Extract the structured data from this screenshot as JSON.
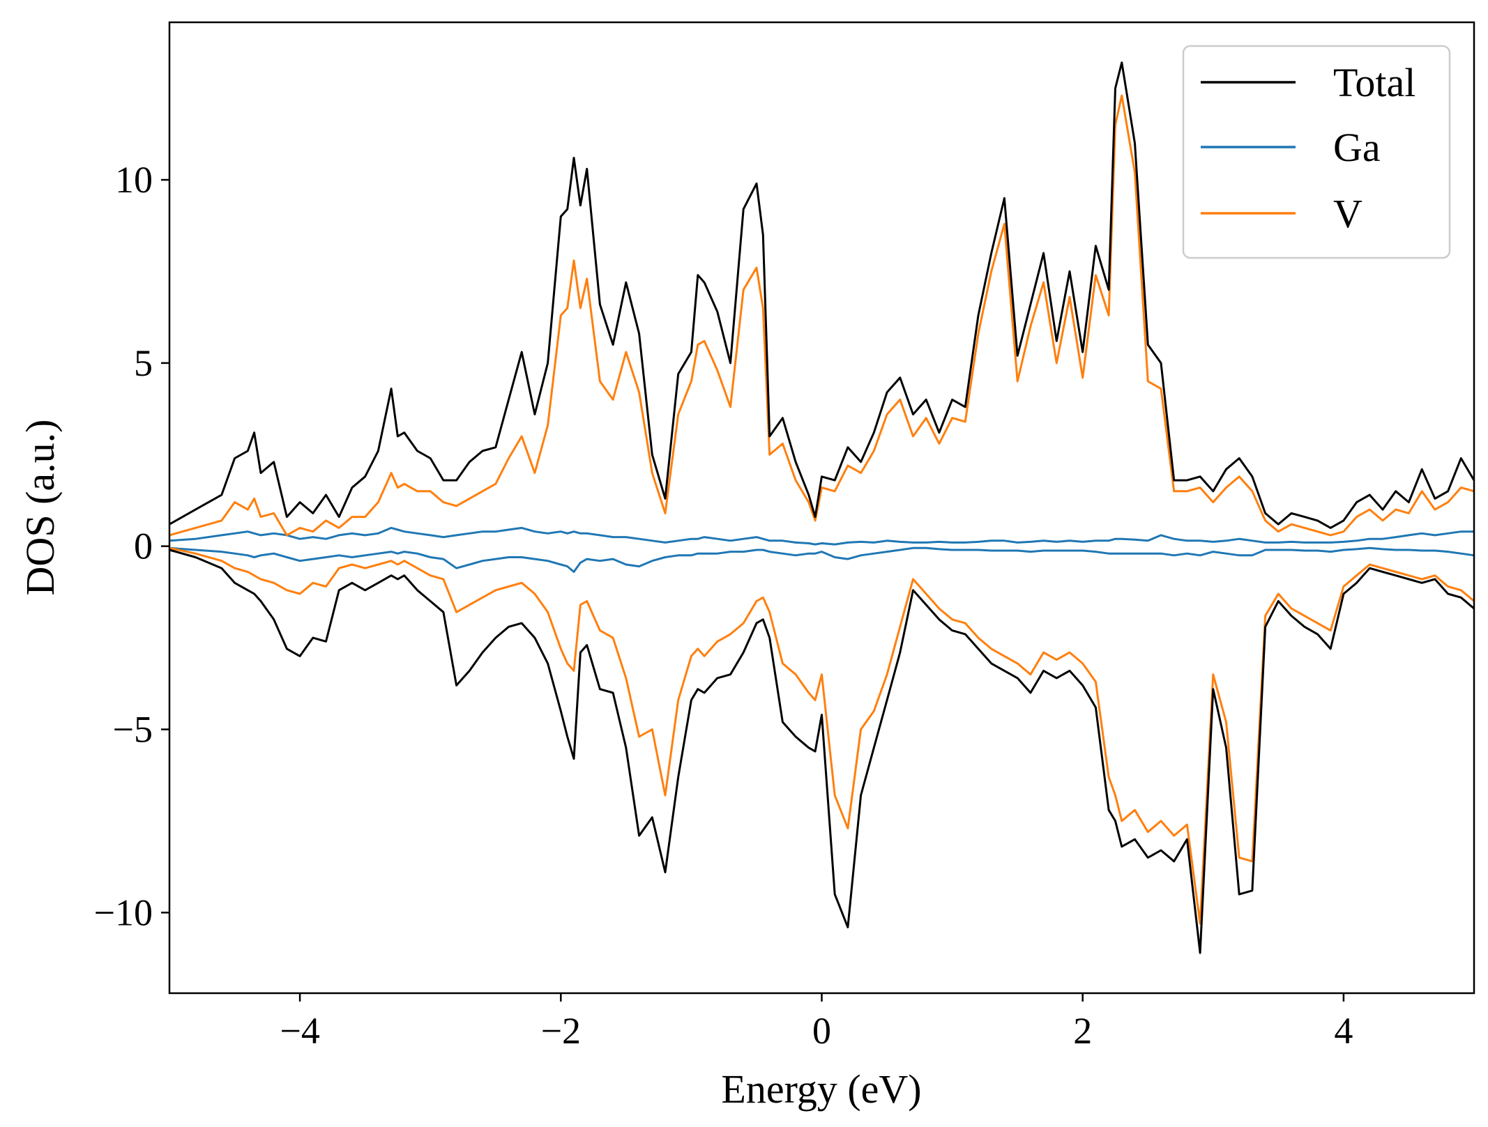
{
  "chart_data": {
    "type": "line",
    "title": "",
    "xlabel": "Energy (eV)",
    "ylabel": "DOS (a.u.)",
    "xlim": [
      -5,
      5
    ],
    "ylim": [
      -12.2,
      14.3
    ],
    "xticks": [
      -4,
      -2,
      0,
      2,
      4
    ],
    "xtick_labels": [
      "−4",
      "−2",
      "0",
      "2",
      "4"
    ],
    "yticks": [
      -10,
      -5,
      0,
      5,
      10
    ],
    "ytick_labels": [
      "−10",
      "−5",
      "0",
      "5",
      "10"
    ],
    "grid": false,
    "legend_position": "top-right",
    "legend": [
      "Total",
      "Ga",
      "V"
    ],
    "colors": {
      "Total": "#000000",
      "Ga": "#1f77b4",
      "V": "#ff7f0e"
    },
    "x": [
      -5.0,
      -4.8,
      -4.6,
      -4.5,
      -4.4,
      -4.35,
      -4.3,
      -4.2,
      -4.1,
      -4.0,
      -3.9,
      -3.8,
      -3.7,
      -3.6,
      -3.5,
      -3.4,
      -3.3,
      -3.25,
      -3.2,
      -3.1,
      -3.0,
      -2.9,
      -2.8,
      -2.7,
      -2.6,
      -2.5,
      -2.4,
      -2.3,
      -2.2,
      -2.1,
      -2.0,
      -1.95,
      -1.9,
      -1.85,
      -1.8,
      -1.7,
      -1.6,
      -1.5,
      -1.4,
      -1.3,
      -1.2,
      -1.1,
      -1.0,
      -0.95,
      -0.9,
      -0.8,
      -0.7,
      -0.6,
      -0.5,
      -0.45,
      -0.4,
      -0.3,
      -0.2,
      -0.1,
      -0.05,
      0.0,
      0.1,
      0.2,
      0.3,
      0.4,
      0.5,
      0.6,
      0.7,
      0.8,
      0.9,
      1.0,
      1.1,
      1.2,
      1.3,
      1.4,
      1.5,
      1.6,
      1.7,
      1.8,
      1.9,
      2.0,
      2.1,
      2.2,
      2.25,
      2.3,
      2.4,
      2.5,
      2.6,
      2.7,
      2.8,
      2.9,
      3.0,
      3.1,
      3.2,
      3.3,
      3.4,
      3.5,
      3.6,
      3.7,
      3.8,
      3.9,
      4.0,
      4.1,
      4.2,
      4.3,
      4.4,
      4.5,
      4.6,
      4.7,
      4.8,
      4.9,
      5.0
    ],
    "series": [
      {
        "name": "Total",
        "spin": "up",
        "values": [
          0.6,
          1.0,
          1.4,
          2.4,
          2.6,
          3.1,
          2.0,
          2.3,
          0.8,
          1.2,
          0.9,
          1.4,
          0.8,
          1.6,
          1.9,
          2.6,
          4.3,
          3.0,
          3.1,
          2.6,
          2.4,
          1.8,
          1.8,
          2.3,
          2.6,
          2.7,
          4.0,
          5.3,
          3.6,
          5.0,
          9.0,
          9.2,
          10.6,
          9.3,
          10.3,
          6.6,
          5.5,
          7.2,
          5.8,
          2.5,
          1.3,
          4.7,
          5.3,
          7.4,
          7.2,
          6.4,
          5.0,
          9.2,
          9.9,
          8.5,
          3.0,
          3.5,
          2.3,
          1.4,
          0.8,
          1.9,
          1.8,
          2.7,
          2.3,
          3.1,
          4.2,
          4.6,
          3.6,
          4.0,
          3.1,
          4.0,
          3.8,
          6.3,
          8.0,
          9.5,
          5.2,
          6.6,
          8.0,
          5.6,
          7.5,
          5.3,
          8.2,
          7.0,
          12.5,
          13.2,
          11.0,
          5.5,
          5.0,
          1.8,
          1.8,
          1.9,
          1.5,
          2.1,
          2.4,
          1.9,
          0.9,
          0.6,
          0.9,
          0.8,
          0.7,
          0.5,
          0.7,
          1.2,
          1.4,
          1.0,
          1.5,
          1.2,
          2.1,
          1.3,
          1.5,
          2.4,
          1.8
        ]
      },
      {
        "name": "Ga",
        "spin": "up",
        "values": [
          0.15,
          0.2,
          0.3,
          0.35,
          0.4,
          0.35,
          0.3,
          0.35,
          0.3,
          0.2,
          0.25,
          0.2,
          0.3,
          0.35,
          0.3,
          0.35,
          0.5,
          0.45,
          0.4,
          0.35,
          0.3,
          0.25,
          0.3,
          0.35,
          0.4,
          0.4,
          0.45,
          0.5,
          0.4,
          0.35,
          0.4,
          0.35,
          0.4,
          0.35,
          0.35,
          0.3,
          0.25,
          0.25,
          0.2,
          0.15,
          0.1,
          0.15,
          0.2,
          0.2,
          0.25,
          0.2,
          0.15,
          0.2,
          0.25,
          0.2,
          0.15,
          0.15,
          0.1,
          0.08,
          0.05,
          0.08,
          0.05,
          0.1,
          0.12,
          0.1,
          0.15,
          0.12,
          0.1,
          0.1,
          0.12,
          0.1,
          0.1,
          0.12,
          0.15,
          0.15,
          0.1,
          0.12,
          0.15,
          0.12,
          0.15,
          0.12,
          0.15,
          0.15,
          0.2,
          0.2,
          0.18,
          0.15,
          0.3,
          0.2,
          0.15,
          0.15,
          0.12,
          0.15,
          0.2,
          0.15,
          0.1,
          0.1,
          0.12,
          0.1,
          0.1,
          0.1,
          0.12,
          0.15,
          0.2,
          0.2,
          0.25,
          0.3,
          0.35,
          0.3,
          0.35,
          0.4,
          0.4
        ]
      },
      {
        "name": "V",
        "spin": "up",
        "values": [
          0.3,
          0.5,
          0.7,
          1.2,
          1.0,
          1.3,
          0.8,
          0.9,
          0.3,
          0.5,
          0.4,
          0.7,
          0.5,
          0.8,
          0.8,
          1.2,
          2.0,
          1.6,
          1.7,
          1.5,
          1.5,
          1.2,
          1.1,
          1.3,
          1.5,
          1.7,
          2.4,
          3.0,
          2.0,
          3.3,
          6.3,
          6.5,
          7.8,
          6.5,
          7.3,
          4.5,
          4.0,
          5.3,
          4.2,
          2.0,
          0.9,
          3.6,
          4.5,
          5.5,
          5.6,
          4.8,
          3.8,
          7.0,
          7.6,
          6.5,
          2.5,
          2.8,
          1.8,
          1.2,
          0.7,
          1.6,
          1.5,
          2.2,
          2.0,
          2.6,
          3.6,
          4.0,
          3.0,
          3.5,
          2.8,
          3.5,
          3.4,
          5.8,
          7.5,
          8.8,
          4.5,
          6.0,
          7.2,
          5.0,
          6.8,
          4.6,
          7.4,
          6.3,
          11.5,
          12.3,
          10.2,
          4.5,
          4.3,
          1.5,
          1.5,
          1.6,
          1.2,
          1.6,
          1.9,
          1.5,
          0.7,
          0.4,
          0.6,
          0.5,
          0.4,
          0.3,
          0.4,
          0.8,
          1.0,
          0.7,
          1.0,
          0.9,
          1.5,
          1.0,
          1.2,
          1.6,
          1.5
        ]
      },
      {
        "name": "Total",
        "spin": "down",
        "values": [
          -0.1,
          -0.3,
          -0.6,
          -1.0,
          -1.2,
          -1.3,
          -1.5,
          -2.0,
          -2.8,
          -3.0,
          -2.5,
          -2.6,
          -1.2,
          -1.0,
          -1.2,
          -1.0,
          -0.8,
          -0.9,
          -0.8,
          -1.2,
          -1.5,
          -1.8,
          -3.8,
          -3.4,
          -2.9,
          -2.5,
          -2.2,
          -2.1,
          -2.5,
          -3.2,
          -4.5,
          -5.2,
          -5.8,
          -2.9,
          -2.7,
          -3.9,
          -4.0,
          -5.5,
          -7.9,
          -7.4,
          -8.9,
          -6.3,
          -4.2,
          -3.9,
          -4.0,
          -3.6,
          -3.5,
          -2.9,
          -2.1,
          -2.0,
          -2.5,
          -4.8,
          -5.2,
          -5.5,
          -5.6,
          -4.6,
          -9.5,
          -10.4,
          -6.8,
          -5.5,
          -4.2,
          -2.9,
          -1.2,
          -1.6,
          -2.0,
          -2.3,
          -2.4,
          -2.8,
          -3.2,
          -3.4,
          -3.6,
          -4.0,
          -3.4,
          -3.6,
          -3.4,
          -3.8,
          -4.4,
          -7.2,
          -7.5,
          -8.2,
          -8.0,
          -8.5,
          -8.3,
          -8.6,
          -8.0,
          -11.1,
          -3.9,
          -5.5,
          -9.5,
          -9.4,
          -2.2,
          -1.5,
          -1.9,
          -2.2,
          -2.4,
          -2.8,
          -1.3,
          -1.0,
          -0.6,
          -0.7,
          -0.8,
          -0.9,
          -1.0,
          -0.9,
          -1.3,
          -1.4,
          -1.7
        ]
      },
      {
        "name": "Ga",
        "spin": "down",
        "values": [
          -0.05,
          -0.1,
          -0.15,
          -0.2,
          -0.25,
          -0.3,
          -0.25,
          -0.2,
          -0.3,
          -0.4,
          -0.35,
          -0.3,
          -0.25,
          -0.3,
          -0.25,
          -0.2,
          -0.15,
          -0.2,
          -0.15,
          -0.2,
          -0.3,
          -0.35,
          -0.6,
          -0.5,
          -0.4,
          -0.35,
          -0.3,
          -0.3,
          -0.35,
          -0.4,
          -0.5,
          -0.55,
          -0.7,
          -0.45,
          -0.35,
          -0.4,
          -0.35,
          -0.5,
          -0.55,
          -0.4,
          -0.3,
          -0.25,
          -0.25,
          -0.2,
          -0.2,
          -0.2,
          -0.15,
          -0.15,
          -0.1,
          -0.1,
          -0.15,
          -0.2,
          -0.25,
          -0.2,
          -0.2,
          -0.15,
          -0.3,
          -0.35,
          -0.25,
          -0.2,
          -0.15,
          -0.1,
          -0.05,
          -0.05,
          -0.08,
          -0.1,
          -0.1,
          -0.1,
          -0.12,
          -0.12,
          -0.12,
          -0.15,
          -0.12,
          -0.12,
          -0.12,
          -0.12,
          -0.15,
          -0.2,
          -0.2,
          -0.2,
          -0.2,
          -0.2,
          -0.2,
          -0.25,
          -0.2,
          -0.25,
          -0.15,
          -0.2,
          -0.25,
          -0.25,
          -0.1,
          -0.1,
          -0.1,
          -0.12,
          -0.12,
          -0.15,
          -0.1,
          -0.08,
          -0.05,
          -0.08,
          -0.1,
          -0.1,
          -0.12,
          -0.12,
          -0.15,
          -0.2,
          -0.25
        ]
      },
      {
        "name": "V",
        "spin": "down",
        "values": [
          -0.05,
          -0.2,
          -0.4,
          -0.6,
          -0.7,
          -0.8,
          -0.9,
          -1.0,
          -1.2,
          -1.3,
          -1.0,
          -1.1,
          -0.6,
          -0.5,
          -0.6,
          -0.5,
          -0.4,
          -0.5,
          -0.4,
          -0.6,
          -0.8,
          -0.9,
          -1.8,
          -1.6,
          -1.4,
          -1.2,
          -1.1,
          -1.0,
          -1.3,
          -1.8,
          -2.8,
          -3.2,
          -3.4,
          -1.6,
          -1.5,
          -2.3,
          -2.5,
          -3.6,
          -5.2,
          -5.0,
          -6.8,
          -4.2,
          -3.0,
          -2.8,
          -3.0,
          -2.6,
          -2.4,
          -2.1,
          -1.5,
          -1.4,
          -1.8,
          -3.2,
          -3.5,
          -4.0,
          -4.2,
          -3.5,
          -6.8,
          -7.7,
          -5.0,
          -4.5,
          -3.5,
          -2.2,
          -0.9,
          -1.3,
          -1.7,
          -2.0,
          -2.1,
          -2.5,
          -2.8,
          -3.0,
          -3.2,
          -3.5,
          -2.9,
          -3.1,
          -2.9,
          -3.2,
          -3.7,
          -6.3,
          -6.8,
          -7.5,
          -7.2,
          -7.8,
          -7.5,
          -7.9,
          -7.6,
          -10.3,
          -3.5,
          -4.8,
          -8.5,
          -8.6,
          -1.9,
          -1.3,
          -1.7,
          -1.9,
          -2.1,
          -2.3,
          -1.1,
          -0.8,
          -0.5,
          -0.6,
          -0.7,
          -0.8,
          -0.9,
          -0.8,
          -1.1,
          -1.2,
          -1.5
        ]
      }
    ]
  }
}
